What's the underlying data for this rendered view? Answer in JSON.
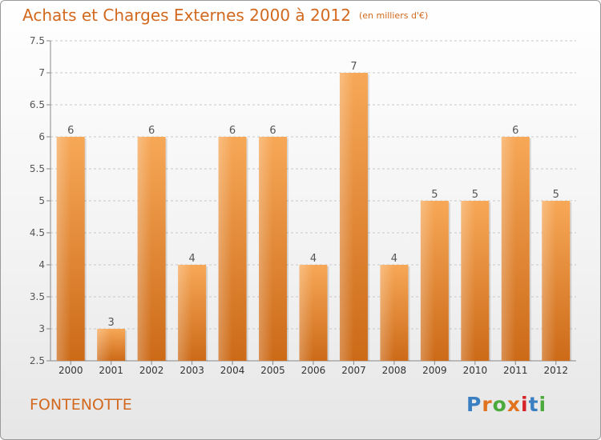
{
  "header": {
    "title": "Achats et Charges Externes 2000 à 2012",
    "unit": "(en milliers d'€)"
  },
  "footer": {
    "place": "FONTENOTTE",
    "logo": "Proxiti"
  },
  "colors": {
    "bar_light": "#f5a553",
    "bar_dark": "#cf6f1c",
    "text_accent": "#d2691e",
    "logo": [
      "#3a7fc1",
      "#e2731e",
      "#4caa3c",
      "#e2731e",
      "#d6232a",
      "#3a7fc1",
      "#4caa3c"
    ]
  },
  "chart_data": {
    "type": "bar",
    "title": "Achats et Charges Externes 2000 à 2012",
    "subtitle": "(en milliers d'€)",
    "xlabel": "",
    "ylabel": "",
    "categories": [
      "2000",
      "2001",
      "2002",
      "2003",
      "2004",
      "2005",
      "2006",
      "2007",
      "2008",
      "2009",
      "2010",
      "2011",
      "2012"
    ],
    "values": [
      6,
      3,
      6,
      4,
      6,
      6,
      4,
      7,
      4,
      5,
      5,
      6,
      5
    ],
    "ylim": [
      2.5,
      7.5
    ],
    "yticks": [
      "2.5",
      "3",
      "3.5",
      "4",
      "4.5",
      "5",
      "5.5",
      "6",
      "6.5",
      "7",
      "7.5"
    ],
    "grid": true
  }
}
